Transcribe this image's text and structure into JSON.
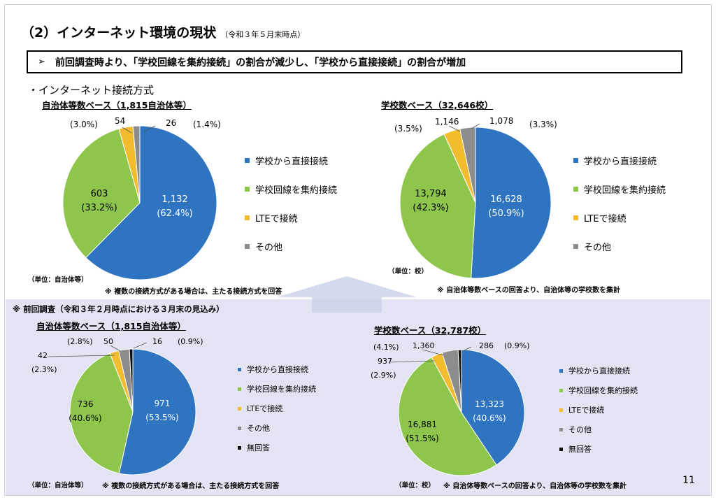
{
  "page": {
    "title": "（2）インターネット環境の現状",
    "title_note": "（令和３年５月末時点）",
    "summary_arrow": "➢",
    "summary": "前回調査時より、「学校回線を集約接続」の割合が減少し、「学校から直接接続」の割合が増加",
    "section_label": "・インターネット接続方式",
    "prev_header": "※ 前回調査（令和３年２月時点における３月末の見込み）",
    "page_number": "11"
  },
  "colors": {
    "direct": "#2e74c0",
    "aggregate": "#8dc64b",
    "lte": "#f3bc2f",
    "other": "#8c8c8c",
    "noanswer": "#111111",
    "prev_panel": "#e3e3f3"
  },
  "charts": {
    "cur_muni": {
      "title": "自治体等数ベース（1,815自治体等）",
      "unit": "（単位：自治体等）",
      "note": "※ 複数の接続方式がある場合は、主たる接続方式を回答",
      "labels": {
        "direct_value": "1,132",
        "direct_pct": "(62.4%)",
        "agg_value": "603",
        "agg_pct": "(33.2%)",
        "lte_pct": "(3.0%)",
        "lte_value": "54",
        "other_value": "26",
        "other_pct": "(1.4%)"
      }
    },
    "cur_school": {
      "title": "学校数ベース（32,646校）",
      "unit": "（単位：校）",
      "note": "※ 自治体等数ベースの回答より、自治体等の学校数を集計",
      "labels": {
        "direct_value": "16,628",
        "direct_pct": "(50.9%)",
        "agg_value": "13,794",
        "agg_pct": "(42.3%)",
        "lte_pct": "(3.5%)",
        "lte_value": "1,146",
        "other_value": "1,078",
        "other_pct": "(3.3%)"
      }
    },
    "prev_muni": {
      "title": "自治体等数ベース（1,815自治体等）",
      "unit": "（単位：自治体等）",
      "note": "※ 複数の接続方式がある場合は、主たる接続方式を回答",
      "labels": {
        "direct_value": "971",
        "direct_pct": "(53.5%)",
        "agg_value": "736",
        "agg_pct": "(40.6%)",
        "lte_value": "42",
        "lte_pct": "(2.3%)",
        "other_pct": "(2.8%)",
        "other_value": "50",
        "noanswer_value": "16",
        "noanswer_pct": "(0.9%)"
      }
    },
    "prev_school": {
      "title": "学校数ベース（32,787校）",
      "unit": "（単位：校）",
      "note": "※ 自治体等数ベースの回答より、自治体等の学校数を集計",
      "labels": {
        "direct_value": "13,323",
        "direct_pct": "(40.6%)",
        "agg_value": "16,881",
        "agg_pct": "(51.5%)",
        "lte_value": "937",
        "lte_pct": "(2.9%)",
        "other_pct": "(4.1%)",
        "other_value": "1,360",
        "noanswer_value": "286",
        "noanswer_pct": "(0.9%)"
      }
    }
  },
  "legend_current": [
    "学校から直接接続",
    "学校回線を集約接続",
    "LTEで接続",
    "その他"
  ],
  "legend_previous": [
    "学校から直接接続",
    "学校回線を集約接続",
    "LTEで接続",
    "その他",
    "無回答"
  ],
  "chart_data": [
    {
      "type": "pie",
      "title": "自治体等数ベース（1,815自治体等）",
      "unit": "単位：自治体等",
      "series": [
        {
          "name": "学校から直接接続",
          "value": 1132,
          "percent": 62.4,
          "color": "#2e74c0"
        },
        {
          "name": "学校回線を集約接続",
          "value": 603,
          "percent": 33.2,
          "color": "#8dc64b"
        },
        {
          "name": "LTEで接続",
          "value": 54,
          "percent": 3.0,
          "color": "#f3bc2f"
        },
        {
          "name": "その他",
          "value": 26,
          "percent": 1.4,
          "color": "#8c8c8c"
        }
      ]
    },
    {
      "type": "pie",
      "title": "学校数ベース（32,646校）",
      "unit": "単位：校",
      "series": [
        {
          "name": "学校から直接接続",
          "value": 16628,
          "percent": 50.9,
          "color": "#2e74c0"
        },
        {
          "name": "学校回線を集約接続",
          "value": 13794,
          "percent": 42.3,
          "color": "#8dc64b"
        },
        {
          "name": "LTEで接続",
          "value": 1146,
          "percent": 3.5,
          "color": "#f3bc2f"
        },
        {
          "name": "その他",
          "value": 1078,
          "percent": 3.3,
          "color": "#8c8c8c"
        }
      ]
    },
    {
      "type": "pie",
      "title": "自治体等数ベース（1,815自治体等）",
      "unit": "単位：自治体等",
      "series": [
        {
          "name": "学校から直接接続",
          "value": 971,
          "percent": 53.5,
          "color": "#2e74c0"
        },
        {
          "name": "学校回線を集約接続",
          "value": 736,
          "percent": 40.6,
          "color": "#8dc64b"
        },
        {
          "name": "LTEで接続",
          "value": 42,
          "percent": 2.3,
          "color": "#f3bc2f"
        },
        {
          "name": "その他",
          "value": 50,
          "percent": 2.8,
          "color": "#8c8c8c"
        },
        {
          "name": "無回答",
          "value": 16,
          "percent": 0.9,
          "color": "#111111"
        }
      ]
    },
    {
      "type": "pie",
      "title": "学校数ベース（32,787校）",
      "unit": "単位：校",
      "series": [
        {
          "name": "学校から直接接続",
          "value": 13323,
          "percent": 40.6,
          "color": "#2e74c0"
        },
        {
          "name": "学校回線を集約接続",
          "value": 16881,
          "percent": 51.5,
          "color": "#8dc64b"
        },
        {
          "name": "LTEで接続",
          "value": 937,
          "percent": 2.9,
          "color": "#f3bc2f"
        },
        {
          "name": "その他",
          "value": 1360,
          "percent": 4.1,
          "color": "#8c8c8c"
        },
        {
          "name": "無回答",
          "value": 286,
          "percent": 0.9,
          "color": "#111111"
        }
      ]
    }
  ]
}
